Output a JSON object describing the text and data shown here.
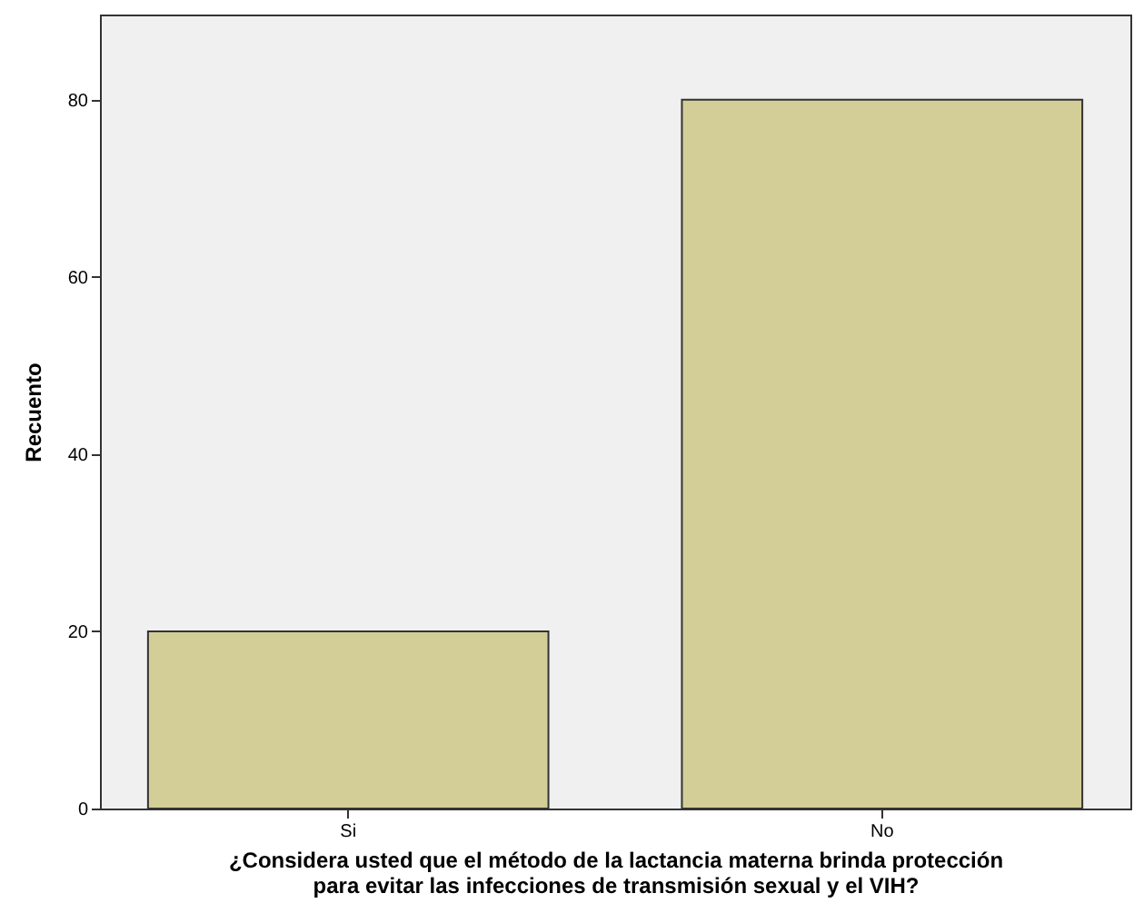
{
  "chart_data": {
    "type": "bar",
    "categories": [
      "Si",
      "No"
    ],
    "values": [
      20,
      80
    ],
    "color": "#d3ce97",
    "xlabel": "¿Considera usted que el método de la lactancia materna brinda protección\npara evitar las infecciones de transmisión sexual y el VIH?",
    "ylabel": "Recuento",
    "ylim": [
      0,
      89.6
    ],
    "yticks": [
      0,
      20,
      40,
      60,
      80
    ],
    "grid": false
  }
}
